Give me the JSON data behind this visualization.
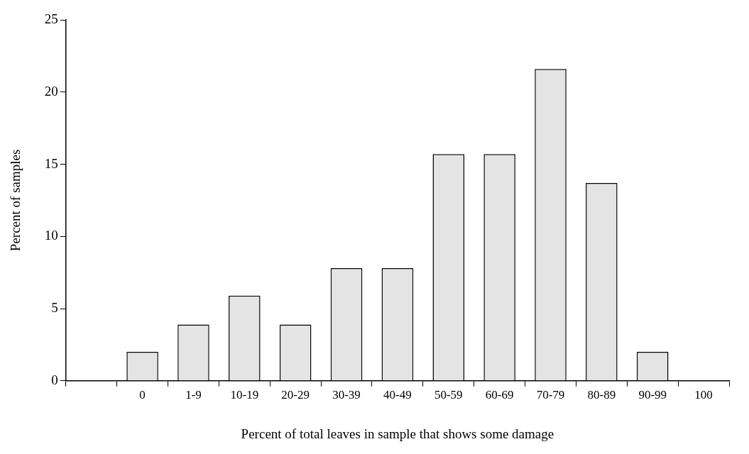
{
  "chart_data": {
    "type": "bar",
    "xlabel": "Percent of total leaves in sample that shows some damage",
    "ylabel": "Percent of samples",
    "categories": [
      null,
      "0",
      "1-9",
      "10-19",
      "20-29",
      "30-39",
      "40-49",
      "50-59",
      "60-69",
      "70-79",
      "80-89",
      "90-99",
      "100"
    ],
    "values": [
      null,
      2.0,
      3.9,
      5.9,
      3.9,
      7.8,
      7.8,
      15.7,
      15.7,
      21.6,
      13.7,
      2.0,
      null
    ],
    "color": "#e4e4e4",
    "ylim": [
      0,
      25
    ],
    "yticks": [
      0,
      5,
      10,
      15,
      20,
      25
    ],
    "grid": false,
    "legend": false
  }
}
